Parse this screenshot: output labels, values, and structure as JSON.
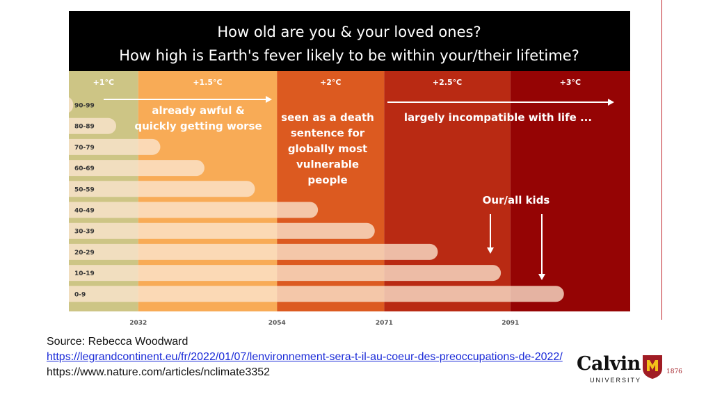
{
  "title": {
    "line1": "How old are you & your loved ones?",
    "line2": "How high is Earth's fever likely to be within your/their lifetime?"
  },
  "chart_data": {
    "type": "bar",
    "orientation": "horizontal",
    "x_axis": {
      "type": "year",
      "ticks": [
        2032,
        2054,
        2071,
        2091
      ],
      "range": [
        2021,
        2110
      ]
    },
    "bands": [
      {
        "label": "+1°C",
        "from": 2021,
        "to": 2032,
        "color": "#cdc585"
      },
      {
        "label": "+1.5°C",
        "from": 2032,
        "to": 2054,
        "color": "#f8ab56"
      },
      {
        "label": "+2°C",
        "from": 2054,
        "to": 2071,
        "color": "#dc5a20"
      },
      {
        "label": "+2.5°C",
        "from": 2071,
        "to": 2091,
        "color": "#b92a13"
      },
      {
        "label": "+3°C",
        "from": 2091,
        "to": 2110,
        "color": "#950404"
      }
    ],
    "categories": [
      "90-99",
      "80-89",
      "70-79",
      "60-69",
      "50-59",
      "40-49",
      "30-39",
      "20-29",
      "10-19",
      "0-9"
    ],
    "series": [
      {
        "values": [
          2021.7,
          2028.5,
          2035.5,
          2042.5,
          2050.5,
          2060.5,
          2069.5,
          2079.5,
          2089.5,
          2099.5
        ]
      }
    ],
    "annotations": [
      {
        "text": [
          "already awful &",
          "quickly getting worse"
        ]
      },
      {
        "text": [
          "seen as a death",
          "sentence for",
          "globally most",
          "vulnerable",
          "people"
        ]
      },
      {
        "text": [
          "largely incompatible with life ..."
        ]
      },
      {
        "text": [
          "Our/all kids"
        ]
      }
    ]
  },
  "source": {
    "line1": "Source: Rebecca Woodward",
    "link": "https://legrandcontinent.eu/fr/2022/01/07/lenvironnement-sera-t-il-au-coeur-des-preoccupations-de-2022/",
    "line3": "https://www.nature.com/articles/nclimate3352"
  },
  "logo": {
    "name": "Calvin",
    "subtitle": "UNIVERSITY",
    "year": "1876",
    "accent": "#a01c24"
  }
}
